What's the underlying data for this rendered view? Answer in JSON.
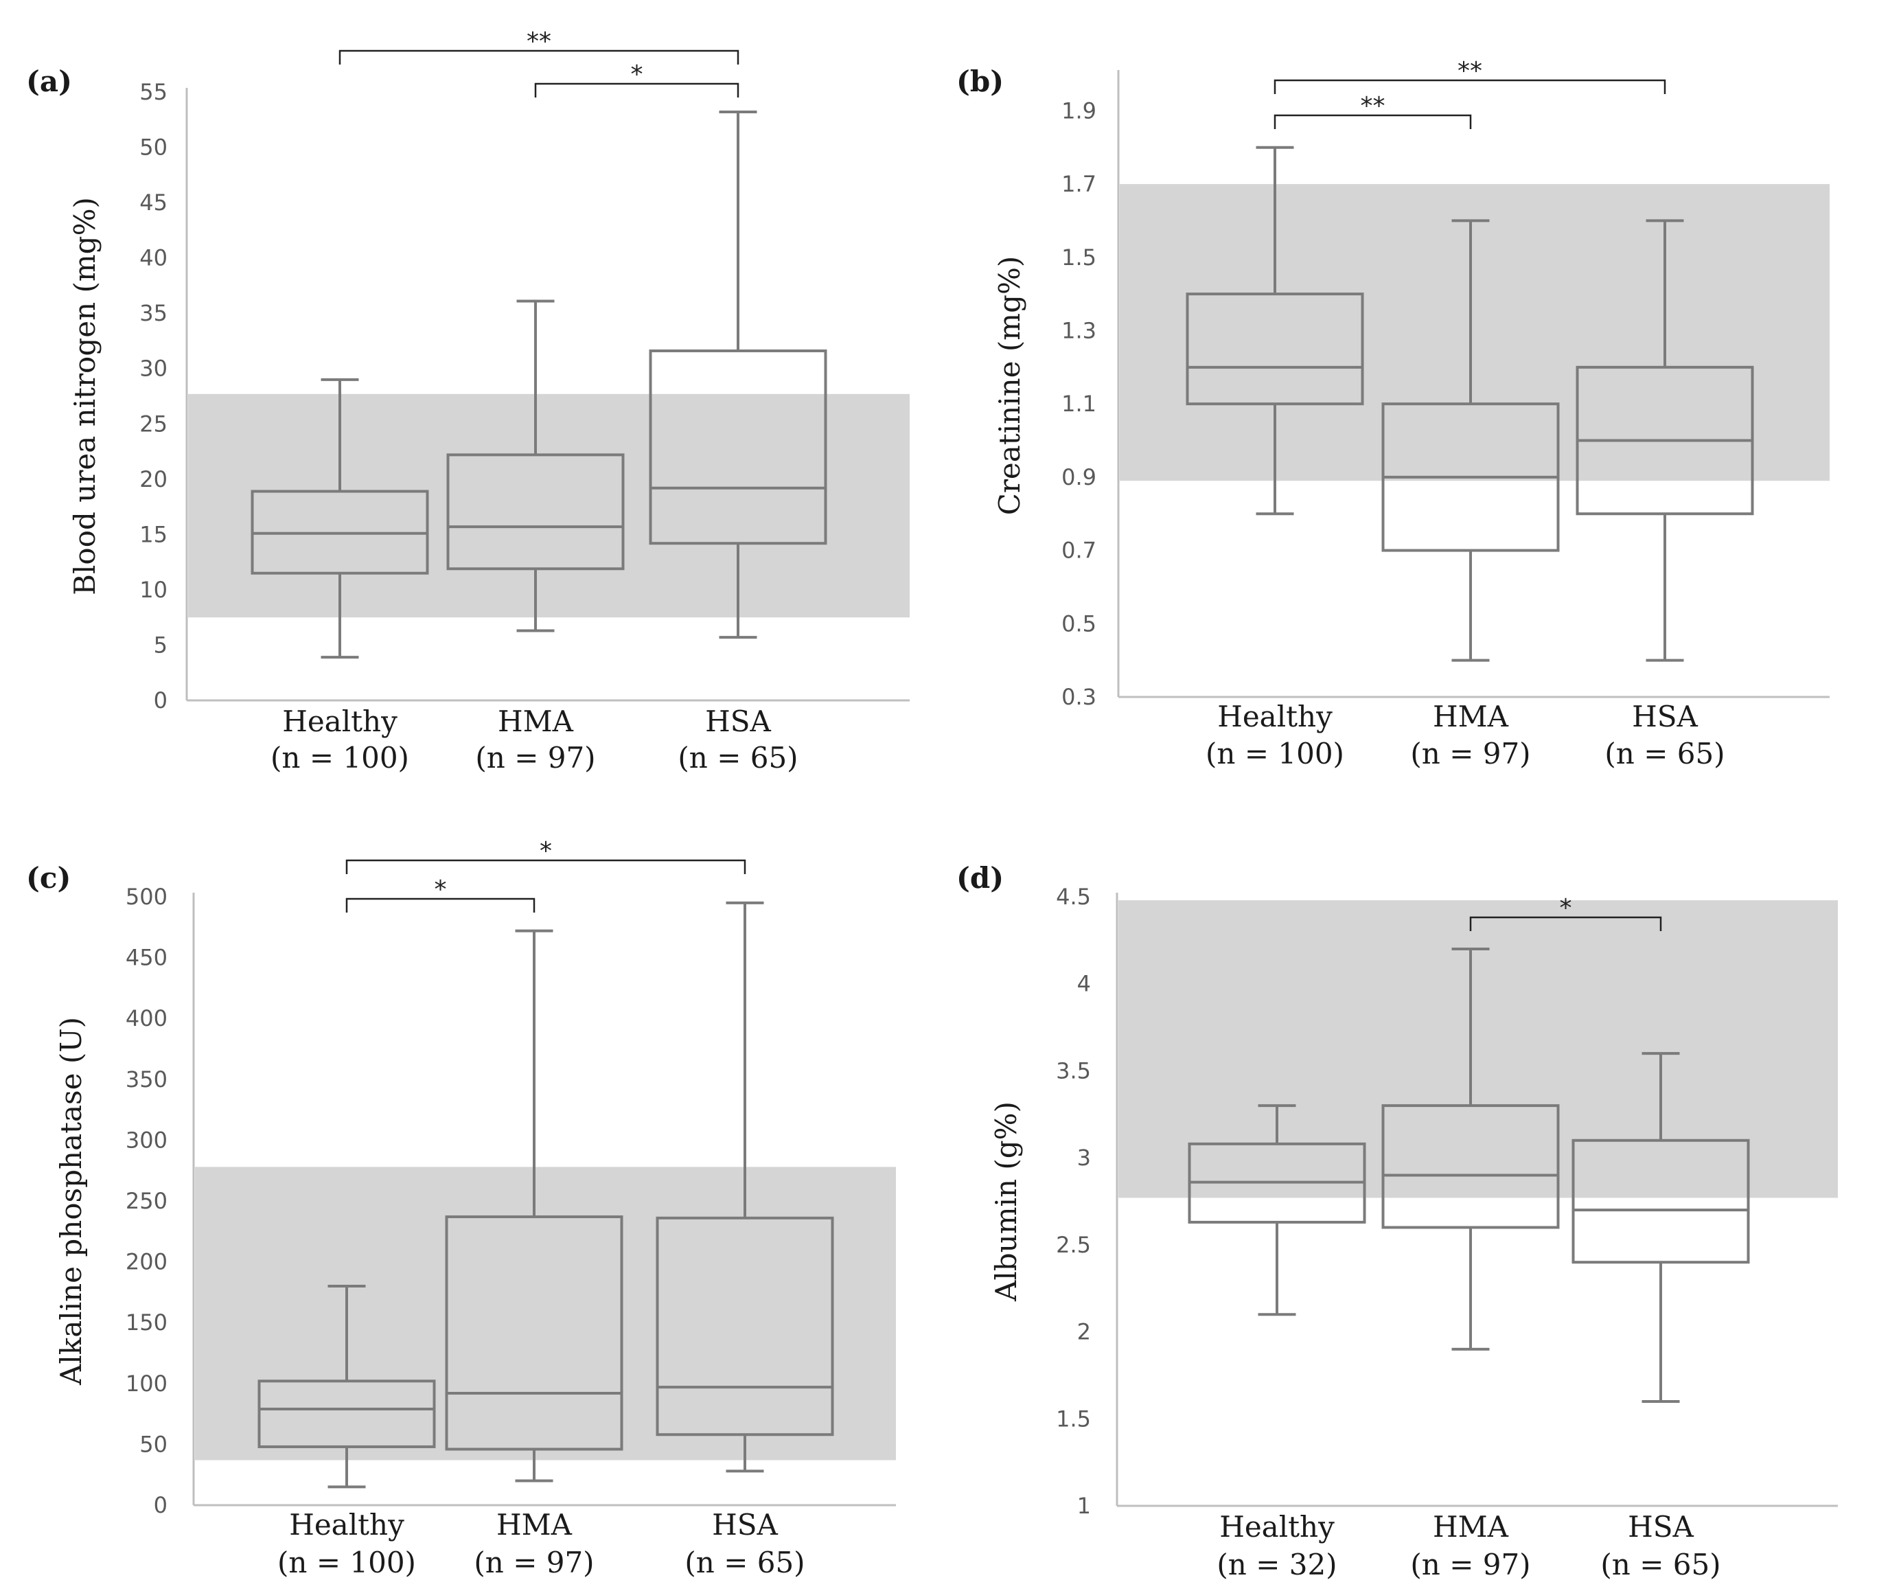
{
  "colors": {
    "reference_band": "#d6d5d6",
    "box_stroke": "#7b7b7b",
    "axis": "#bfbfbf",
    "tick_label": "#595959",
    "title_text": "#1a1a1a"
  },
  "chart_data": [
    {
      "type": "box",
      "panel_label": "(a)",
      "ylabel": "Blood urea nitrogen (mg%)",
      "ylim": [
        0,
        55
      ],
      "yticks": [
        0,
        5,
        10,
        15,
        20,
        25,
        30,
        35,
        40,
        45,
        50,
        55
      ],
      "ytick_labels": [
        "0",
        "5",
        "10",
        "15",
        "20",
        "25",
        "30",
        "35",
        "40",
        "45",
        "50",
        "55"
      ],
      "reference_range": [
        7.5,
        27.7
      ],
      "categories": [
        {
          "name": "Healthy",
          "n_label": "(n = 100)"
        },
        {
          "name": "HMA",
          "n_label": "(n = 97)"
        },
        {
          "name": "HSA",
          "n_label": "(n = 65)"
        }
      ],
      "boxes": [
        {
          "min": 3.9,
          "q1": 11.5,
          "median": 15.1,
          "q3": 18.9,
          "max": 29
        },
        {
          "min": 6.3,
          "q1": 11.9,
          "median": 15.7,
          "q3": 22.2,
          "max": 36.1
        },
        {
          "min": 5.7,
          "q1": 14.2,
          "median": 19.2,
          "q3": 31.6,
          "max": 53.2
        }
      ],
      "significance": [
        {
          "from": 0,
          "to": 2,
          "label": "**"
        },
        {
          "from": 1,
          "to": 2,
          "label": "*"
        }
      ]
    },
    {
      "type": "box",
      "panel_label": "(b)",
      "ylabel": "Creatinine (mg%)",
      "ylim": [
        0.3,
        2.0
      ],
      "yticks": [
        0.3,
        0.5,
        0.7,
        0.9,
        1.1,
        1.3,
        1.5,
        1.7,
        1.9
      ],
      "ytick_labels": [
        "0.3",
        "0.5",
        "0.7",
        "0.9",
        "1.1",
        "1.3",
        "1.5",
        "1.7",
        "1.9"
      ],
      "reference_range": [
        0.89,
        1.7
      ],
      "categories": [
        {
          "name": "Healthy",
          "n_label": "(n = 100)"
        },
        {
          "name": "HMA",
          "n_label": "(n = 97)"
        },
        {
          "name": "HSA",
          "n_label": "(n = 65)"
        }
      ],
      "boxes": [
        {
          "min": 0.8,
          "q1": 1.1,
          "median": 1.2,
          "q3": 1.4,
          "max": 1.8
        },
        {
          "min": 0.4,
          "q1": 0.7,
          "median": 0.9,
          "q3": 1.1,
          "max": 1.6
        },
        {
          "min": 0.4,
          "q1": 0.8,
          "median": 1.0,
          "q3": 1.2,
          "max": 1.6
        }
      ],
      "significance": [
        {
          "from": 0,
          "to": 1,
          "label": "**"
        },
        {
          "from": 0,
          "to": 2,
          "label": "**"
        }
      ]
    },
    {
      "type": "box",
      "panel_label": "(c)",
      "ylabel": "Alkaline phosphatase (U)",
      "ylim": [
        0,
        500
      ],
      "yticks": [
        0,
        50,
        100,
        150,
        200,
        250,
        300,
        350,
        400,
        450,
        500
      ],
      "ytick_labels": [
        "0",
        "50",
        "100",
        "150",
        "200",
        "250",
        "300",
        "350",
        "400",
        "450",
        "500"
      ],
      "reference_range": [
        37,
        278
      ],
      "categories": [
        {
          "name": "Healthy",
          "n_label": "(n = 100)"
        },
        {
          "name": "HMA",
          "n_label": "(n = 97)"
        },
        {
          "name": "HSA",
          "n_label": "(n = 65)"
        }
      ],
      "boxes": [
        {
          "min": 15,
          "q1": 48,
          "median": 79,
          "q3": 102,
          "max": 180
        },
        {
          "min": 20,
          "q1": 46,
          "median": 92,
          "q3": 237,
          "max": 472
        },
        {
          "min": 28,
          "q1": 58,
          "median": 97,
          "q3": 236,
          "max": 495
        }
      ],
      "significance": [
        {
          "from": 0,
          "to": 1,
          "label": "*"
        },
        {
          "from": 0,
          "to": 2,
          "label": "*"
        }
      ]
    },
    {
      "type": "box",
      "panel_label": "(d)",
      "ylabel": "Albumin (g%)",
      "ylim": [
        1,
        4.5
      ],
      "yticks": [
        1,
        1.5,
        2,
        2.5,
        3,
        3.5,
        4,
        4.5
      ],
      "ytick_labels": [
        "1",
        "1.5",
        "2",
        "2.5",
        "3",
        "3.5",
        "4",
        "4.5"
      ],
      "reference_range": [
        2.77,
        4.48
      ],
      "categories": [
        {
          "name": "Healthy",
          "n_label": "(n = 32)"
        },
        {
          "name": "HMA",
          "n_label": "(n = 97)"
        },
        {
          "name": "HSA",
          "n_label": "(n = 65)"
        }
      ],
      "boxes": [
        {
          "min": 2.1,
          "q1": 2.63,
          "median": 2.86,
          "q3": 3.08,
          "max": 3.3
        },
        {
          "min": 1.9,
          "q1": 2.6,
          "median": 2.9,
          "q3": 3.3,
          "max": 4.2
        },
        {
          "min": 1.6,
          "q1": 2.4,
          "median": 2.7,
          "q3": 3.1,
          "max": 3.6
        }
      ],
      "significance": [
        {
          "from": 1,
          "to": 2,
          "label": "*"
        }
      ]
    }
  ]
}
